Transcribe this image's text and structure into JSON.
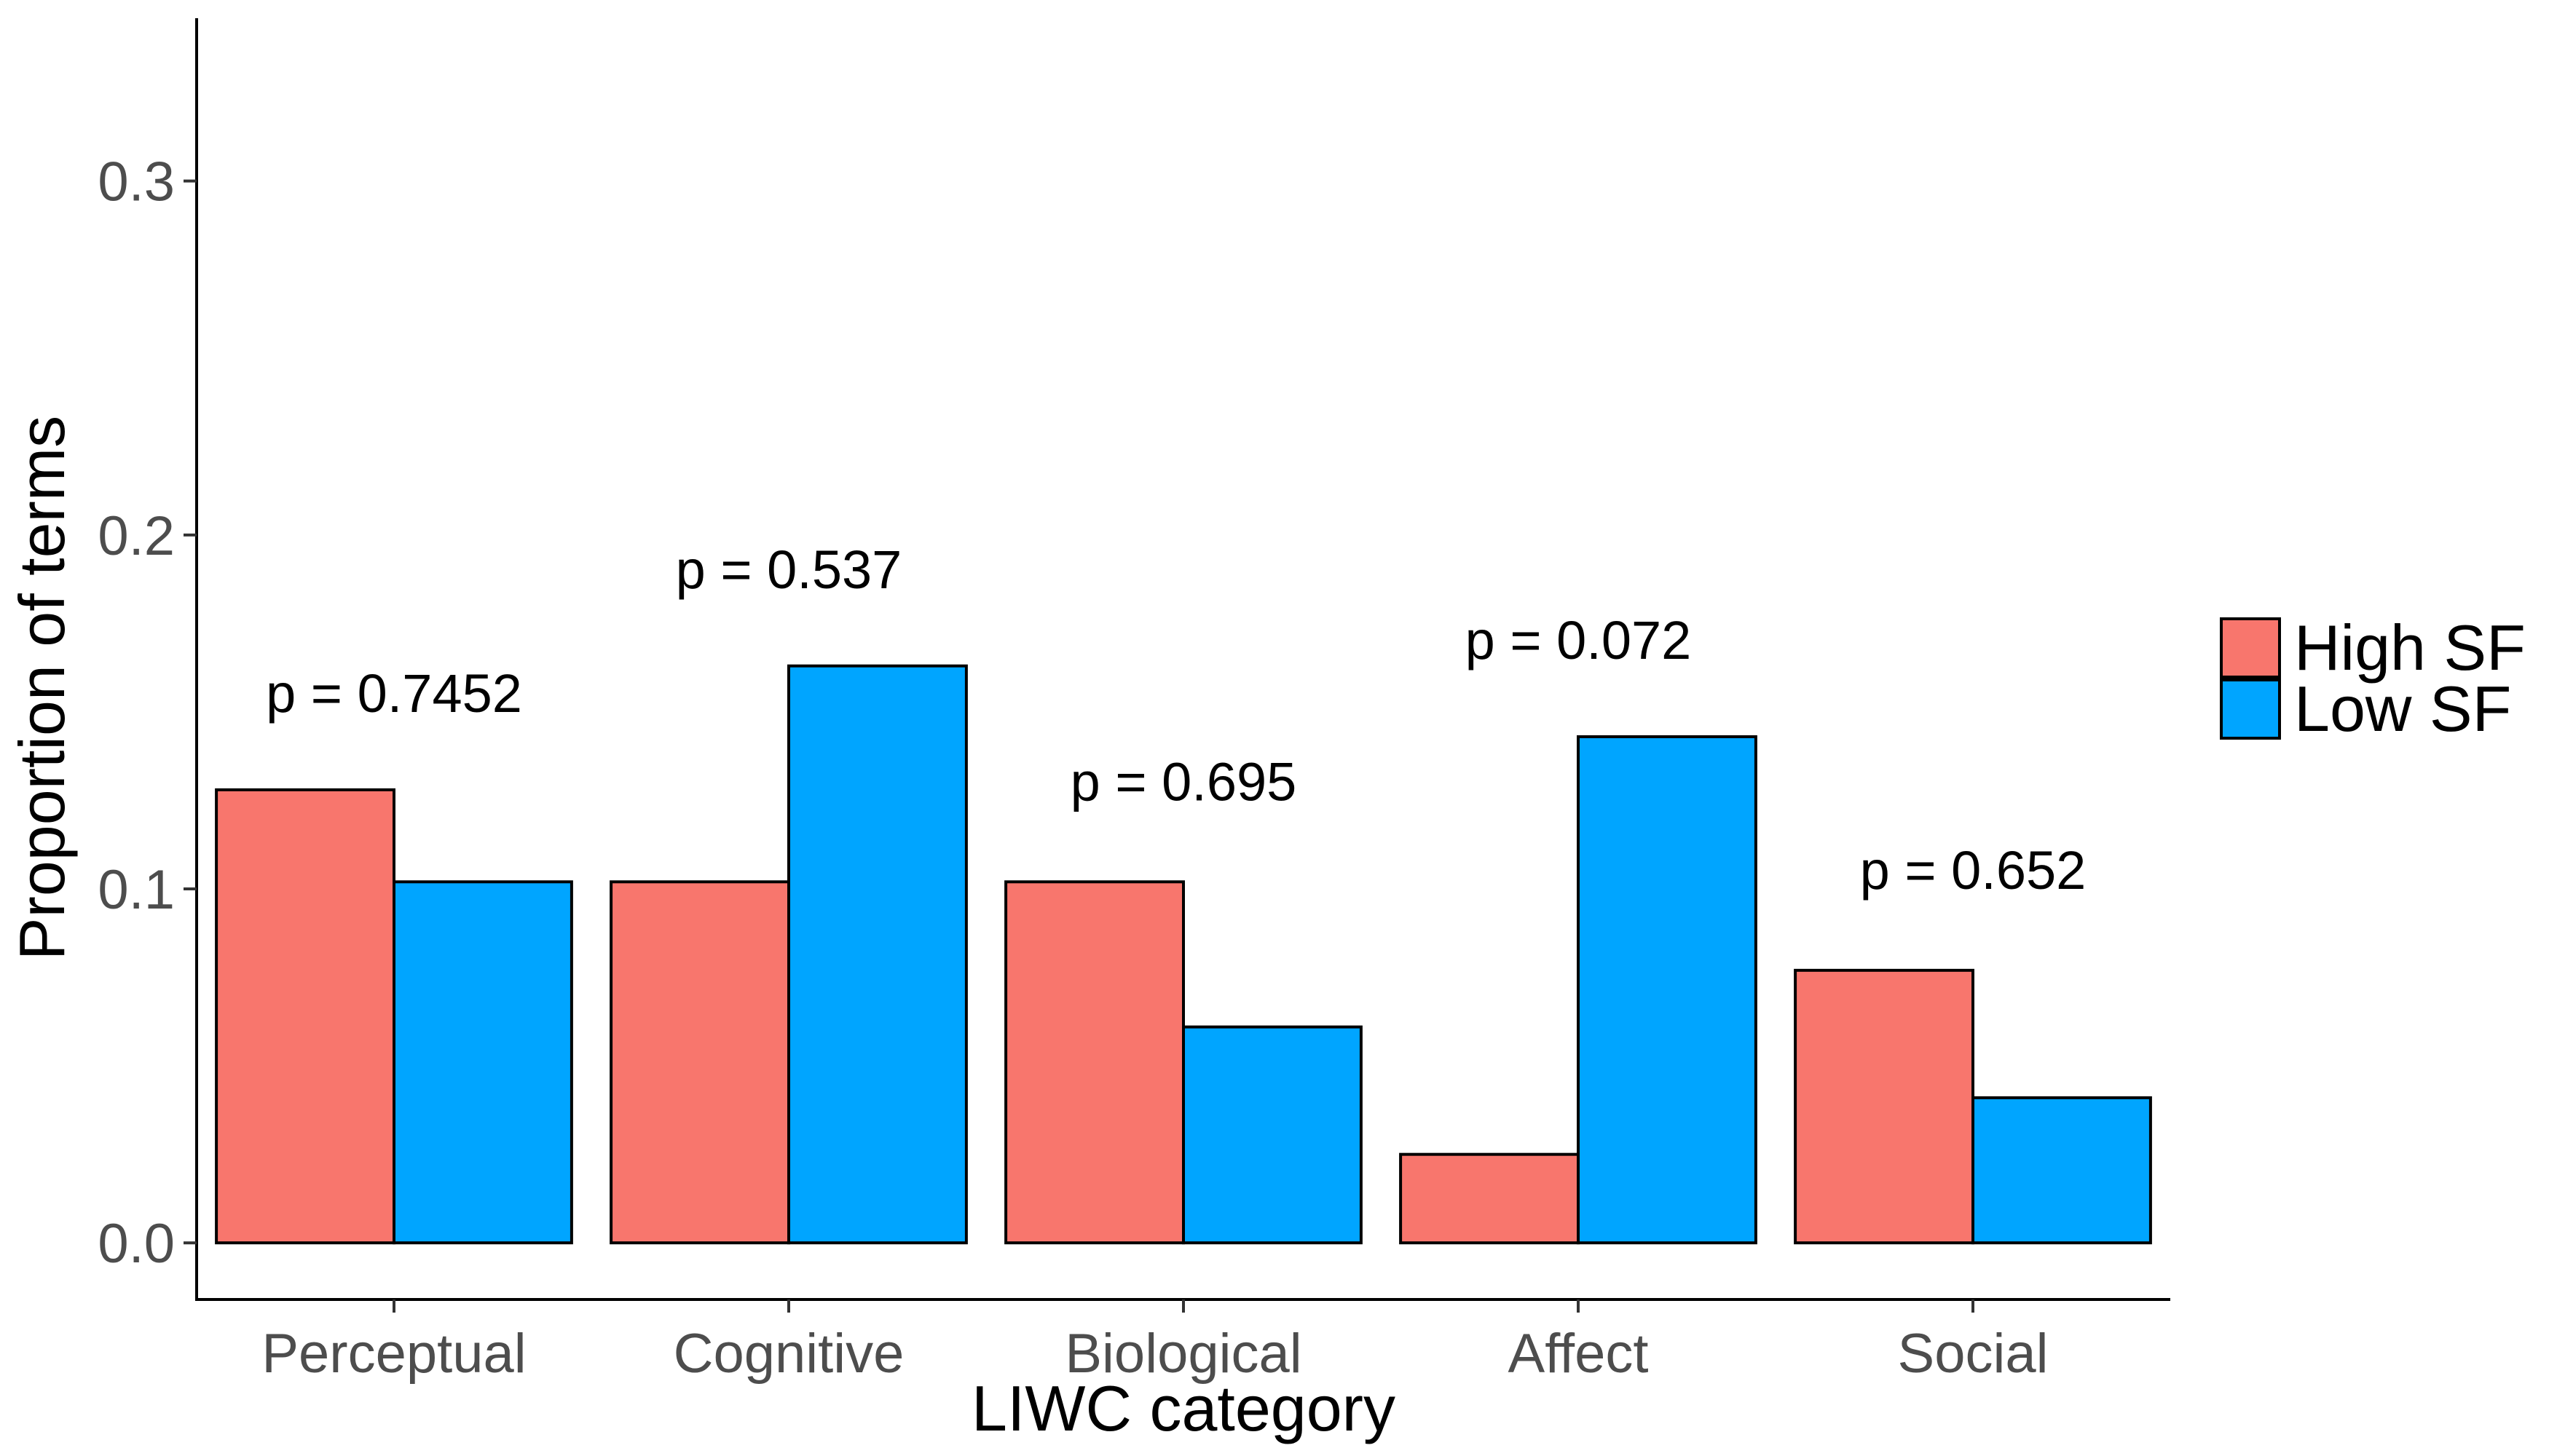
{
  "chart_data": {
    "type": "bar",
    "xlabel": "LIWC category",
    "ylabel": "Proportion of terms",
    "categories": [
      "Perceptual",
      "Cognitive",
      "Biological",
      "Affect",
      "Social"
    ],
    "series": [
      {
        "name": "High SF",
        "color": "#F8766D",
        "values": [
          0.128,
          0.102,
          0.102,
          0.025,
          0.077
        ]
      },
      {
        "name": "Low SF",
        "color": "#00A5FF",
        "values": [
          0.102,
          0.163,
          0.061,
          0.143,
          0.041
        ]
      }
    ],
    "annotations": [
      "p = 0.7452",
      "p = 0.537",
      "p = 0.695",
      "p = 0.072",
      "p = 0.652"
    ],
    "annotation_y": [
      0.15,
      0.185,
      0.125,
      0.165,
      0.1
    ],
    "yticks": [
      0.0,
      0.1,
      0.2,
      0.3
    ],
    "ytick_labels": [
      "0.0",
      "0.1",
      "0.2",
      "0.3"
    ],
    "ylim": [
      -0.016,
      0.346
    ],
    "grid": false,
    "legend_position": "right"
  }
}
